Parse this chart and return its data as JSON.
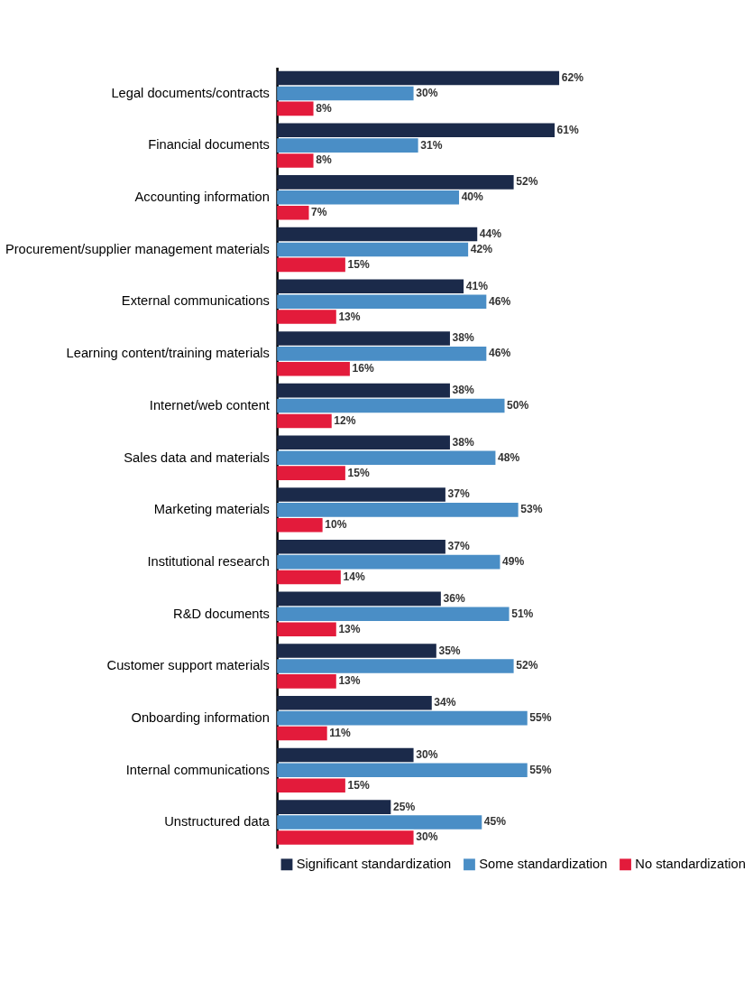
{
  "chart_data": {
    "type": "bar",
    "orientation": "horizontal",
    "legend": "bottom",
    "grid": false,
    "categories": [
      "Legal documents/contracts",
      "Financial documents",
      "Accounting information",
      "Procurement/supplier management materials",
      "External communications",
      "Learning content/training materials",
      "Internet/web content",
      "Sales data and materials",
      "Marketing materials",
      "Institutional research",
      "R&D documents",
      "Customer support materials",
      "Onboarding information",
      "Internal communications",
      "Unstructured data"
    ],
    "series": [
      {
        "name": "Significant standardization",
        "color": "#1b2a4a",
        "values": [
          62,
          61,
          52,
          44,
          41,
          38,
          38,
          38,
          37,
          37,
          36,
          35,
          34,
          30,
          25
        ],
        "value_labels": [
          "62%",
          "61%",
          "52%",
          "44%",
          "41%",
          "38%",
          "38%",
          "38%",
          "37%",
          "37%",
          "36%",
          "35%",
          "34%",
          "30%",
          "25%"
        ]
      },
      {
        "name": "Some standardization",
        "color": "#4a8ec6",
        "values": [
          30,
          31,
          40,
          42,
          46,
          46,
          50,
          48,
          53,
          49,
          51,
          52,
          55,
          55,
          45
        ],
        "value_labels": [
          "30%",
          "31%",
          "40%",
          "42%",
          "46%",
          "46%",
          "50%",
          "48%",
          "53%",
          "49%",
          "51%",
          "52%",
          "55%",
          "55%",
          "45%"
        ]
      },
      {
        "name": "No standardization",
        "color": "#e31b3b",
        "values": [
          8,
          8,
          7,
          15,
          13,
          16,
          12,
          15,
          10,
          14,
          13,
          13,
          11,
          15,
          30
        ],
        "value_labels": [
          "8%",
          "8%",
          "7%",
          "15%",
          "13%",
          "16%",
          "12%",
          "15%",
          "10%",
          "14%",
          "13%",
          "13%",
          "11%",
          "15%",
          "30%"
        ]
      }
    ]
  }
}
